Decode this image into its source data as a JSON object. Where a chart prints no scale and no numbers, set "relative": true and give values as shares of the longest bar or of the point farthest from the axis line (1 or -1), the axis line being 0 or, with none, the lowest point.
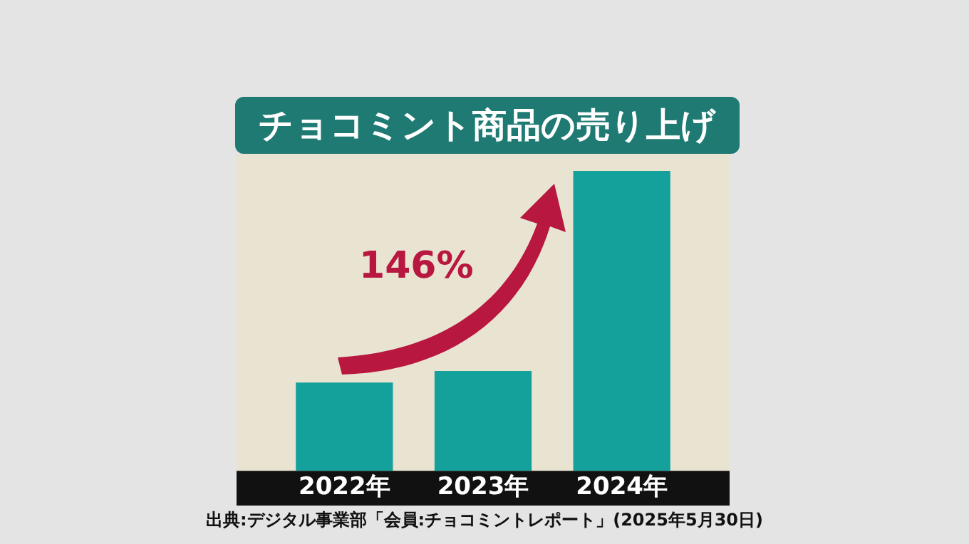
{
  "chart_data": {
    "type": "bar",
    "title": "チョコミント商品の売り上げ",
    "categories": [
      "2022年",
      "2023年",
      "2024年"
    ],
    "values": [
      0.294,
      0.333,
      1
    ],
    "color": "#14a19c",
    "relative": true,
    "grid": false,
    "legend": false,
    "annotations": [
      "146%",
      "出典:デジタル事業部「会員:チョコミントレポート」(2025年5月30日)"
    ]
  }
}
